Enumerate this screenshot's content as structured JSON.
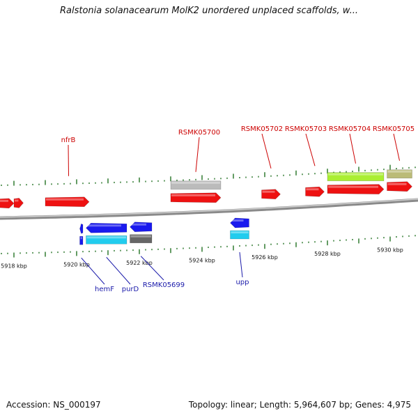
{
  "header": {
    "title": "Ralstonia solanacearum MolK2 unordered unplaced scaffolds, w..."
  },
  "footer": {
    "accession": "Accession: NS_000197",
    "summary": "Topology: linear; Length: 5,964,607 bp; Genes: 4,975"
  },
  "colors": {
    "forward_gene": "#ee1111",
    "reverse_gene": "#1a1aee",
    "rna_gene": "#22ccee",
    "pseudo_gene": "#bbbbbb",
    "category_green": "#aaee33",
    "category_olive": "#bbbb77",
    "dark_gray": "#666666",
    "tick": "#116611",
    "backbone": "#8a8a8a",
    "forward_label": "#cc0000",
    "reverse_label": "#1a1aaa"
  },
  "chart_data": {
    "type": "genome-map",
    "axis_unit": "kbp",
    "tick_labels": [
      {
        "kbp": 5918,
        "label": "5918 kbp"
      },
      {
        "kbp": 5920,
        "label": "5920 kbp"
      },
      {
        "kbp": 5922,
        "label": "5922 kbp"
      },
      {
        "kbp": 5924,
        "label": "5924 kbp"
      },
      {
        "kbp": 5926,
        "label": "5926 kbp"
      },
      {
        "kbp": 5928,
        "label": "5928 kbp"
      },
      {
        "kbp": 5930,
        "label": "5930 kbp"
      }
    ],
    "view_range_kbp": [
      5917.4,
      5931.5
    ],
    "forward_features": [
      {
        "name": "",
        "start": 5917.4,
        "end": 5918.0,
        "track": 1,
        "color": "forward_gene"
      },
      {
        "name": "",
        "start": 5918.0,
        "end": 5918.3,
        "track": 1,
        "color": "forward_gene"
      },
      {
        "name": "nfrB",
        "start": 5919.0,
        "end": 5920.4,
        "track": 1,
        "color": "forward_gene"
      },
      {
        "name": "RSMK05700",
        "start": 5923.0,
        "end": 5924.6,
        "track": 1,
        "color": "forward_gene"
      },
      {
        "name": "",
        "start": 5923.0,
        "end": 5924.6,
        "track": 2,
        "color": "pseudo_gene"
      },
      {
        "name": "RSMK05702",
        "start": 5925.9,
        "end": 5926.5,
        "track": 1,
        "color": "forward_gene"
      },
      {
        "name": "RSMK05703",
        "start": 5927.3,
        "end": 5927.9,
        "track": 1,
        "color": "forward_gene"
      },
      {
        "name": "RSMK05704",
        "start": 5928.0,
        "end": 5929.8,
        "track": 1,
        "color": "forward_gene"
      },
      {
        "name": "",
        "start": 5928.0,
        "end": 5929.8,
        "track": 2,
        "color": "category_green"
      },
      {
        "name": "RSMK05705",
        "start": 5929.9,
        "end": 5930.7,
        "track": 1,
        "color": "forward_gene"
      },
      {
        "name": "",
        "start": 5929.9,
        "end": 5930.7,
        "track": 2,
        "color": "category_olive"
      },
      {
        "name": "",
        "start": 5931.4,
        "end": 5931.6,
        "track": 1,
        "color": "forward_gene"
      },
      {
        "name": "",
        "start": 5931.4,
        "end": 5931.6,
        "track": 2,
        "color": "dark_gray"
      }
    ],
    "reverse_features": [
      {
        "name": "hemF",
        "start": 5920.1,
        "end": 5920.2,
        "track": 1,
        "color": "reverse_gene"
      },
      {
        "name": "",
        "start": 5920.1,
        "end": 5920.2,
        "track": 2,
        "color": "reverse_gene"
      },
      {
        "name": "purD",
        "start": 5920.3,
        "end": 5921.6,
        "track": 1,
        "color": "reverse_gene"
      },
      {
        "name": "",
        "start": 5920.3,
        "end": 5921.6,
        "track": 2,
        "color": "rna_gene"
      },
      {
        "name": "RSMK05699",
        "start": 5921.7,
        "end": 5922.4,
        "track": 1,
        "color": "reverse_gene"
      },
      {
        "name": "",
        "start": 5921.7,
        "end": 5922.4,
        "track": 2,
        "color": "dark_gray"
      },
      {
        "name": "upp",
        "start": 5924.9,
        "end": 5925.5,
        "track": 1,
        "color": "reverse_gene"
      },
      {
        "name": "",
        "start": 5924.9,
        "end": 5925.5,
        "track": 2,
        "color": "rna_gene"
      }
    ]
  }
}
